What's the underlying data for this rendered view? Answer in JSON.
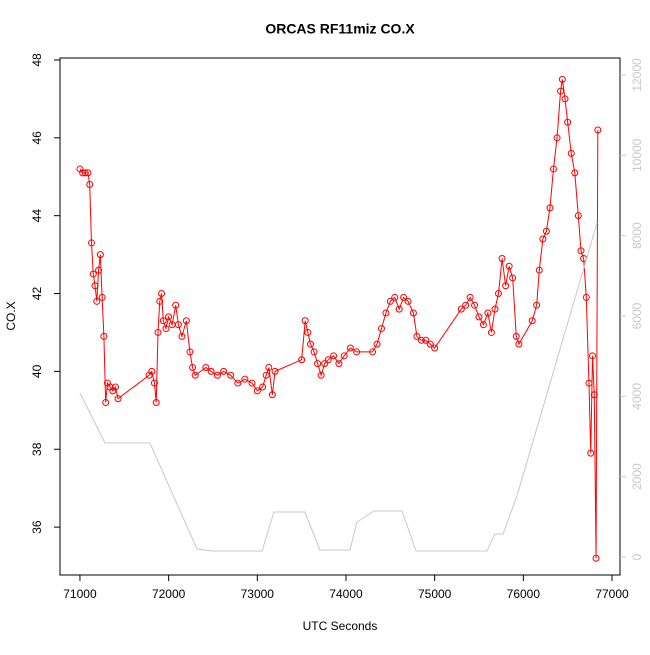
{
  "chart_data": {
    "type": "line",
    "title": "ORCAS RF11miz CO.X",
    "x_label": "UTC Seconds",
    "y_label": "CO.X",
    "xlim": [
      70775,
      77090
    ],
    "xticks": [
      71000,
      72000,
      73000,
      74000,
      75000,
      76000,
      77000
    ],
    "ylim": [
      34.77,
      48.05
    ],
    "yticks": [
      36,
      38,
      40,
      42,
      44,
      46,
      48
    ],
    "y2lim": [
      -448,
      12423
    ],
    "y2ticks": [
      0,
      2000,
      4000,
      6000,
      8000,
      10000,
      12000
    ],
    "series": [
      {
        "color": "#ff0000",
        "marker": "circle",
        "x": [
          71000,
          71030,
          71060,
          71090,
          71110,
          71130,
          71150,
          71170,
          71190,
          71210,
          71230,
          71250,
          71270,
          71290,
          71310,
          71340,
          71370,
          71400,
          71430,
          71780,
          71810,
          71840,
          71860,
          71880,
          71900,
          71920,
          71940,
          71970,
          72000,
          72040,
          72080,
          72110,
          72150,
          72200,
          72240,
          72270,
          72300,
          72420,
          72480,
          72550,
          72620,
          72700,
          72780,
          72860,
          72940,
          73000,
          73060,
          73100,
          73130,
          73170,
          73200,
          73500,
          73540,
          73570,
          73600,
          73640,
          73680,
          73720,
          73760,
          73800,
          73860,
          73920,
          73980,
          74050,
          74120,
          74300,
          74350,
          74400,
          74450,
          74500,
          74550,
          74600,
          74650,
          74700,
          74760,
          74800,
          74850,
          74900,
          74950,
          75000,
          75300,
          75350,
          75400,
          75450,
          75500,
          75550,
          75600,
          75640,
          75680,
          75720,
          75760,
          75800,
          75840,
          75880,
          75920,
          75950,
          76100,
          76150,
          76180,
          76220,
          76260,
          76300,
          76340,
          76380,
          76420,
          76440,
          76470,
          76500,
          76540,
          76580,
          76620,
          76650,
          76680,
          76710,
          76740,
          76760,
          76780,
          76800,
          76820,
          76840
        ],
        "values": [
          45.2,
          45.1,
          45.1,
          45.1,
          44.8,
          43.3,
          42.5,
          42.2,
          41.8,
          42.6,
          43.0,
          41.9,
          40.9,
          39.2,
          39.7,
          39.6,
          39.5,
          39.6,
          39.3,
          39.9,
          40.0,
          39.7,
          39.2,
          41.0,
          41.8,
          42.0,
          41.3,
          41.1,
          41.4,
          41.2,
          41.7,
          41.2,
          40.9,
          41.3,
          40.5,
          40.1,
          39.9,
          40.1,
          40.0,
          39.9,
          40.0,
          39.9,
          39.7,
          39.8,
          39.7,
          39.5,
          39.6,
          39.9,
          40.1,
          39.4,
          40.0,
          40.3,
          41.3,
          41.0,
          40.7,
          40.5,
          40.2,
          39.9,
          40.2,
          40.3,
          40.4,
          40.2,
          40.4,
          40.6,
          40.5,
          40.5,
          40.7,
          41.1,
          41.5,
          41.8,
          41.9,
          41.6,
          41.9,
          41.8,
          41.5,
          40.9,
          40.8,
          40.8,
          40.7,
          40.6,
          41.6,
          41.7,
          41.9,
          41.7,
          41.4,
          41.2,
          41.5,
          41.0,
          41.6,
          42.0,
          42.9,
          42.2,
          42.7,
          42.4,
          40.9,
          40.7,
          41.3,
          41.7,
          42.6,
          43.4,
          43.6,
          44.2,
          45.2,
          46.0,
          47.2,
          47.5,
          47.0,
          46.4,
          45.6,
          45.1,
          44.0,
          43.1,
          42.9,
          41.9,
          39.7,
          37.9,
          40.4,
          39.4,
          35.2,
          46.2
        ]
      },
      {
        "color": "#c8c8c8",
        "axis": "y2",
        "x": [
          71000,
          71282,
          71789,
          72320,
          72489,
          73053,
          73188,
          73537,
          73706,
          74045,
          74124,
          74316,
          74632,
          74790,
          75590,
          75680,
          75771,
          75928,
          76831
        ],
        "values": [
          4083,
          2838,
          2838,
          199,
          150,
          150,
          1120,
          1120,
          174,
          174,
          871,
          1145,
          1145,
          150,
          150,
          573,
          573,
          1519,
          8315
        ]
      }
    ]
  }
}
